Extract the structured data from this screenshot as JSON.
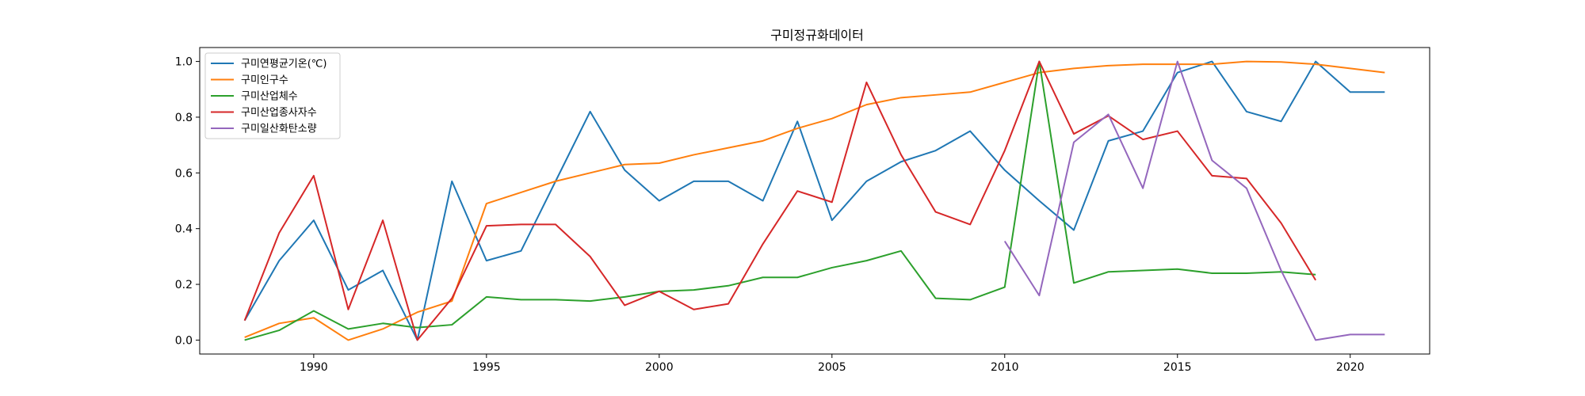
{
  "chart_data": {
    "type": "line",
    "title": "구미정규화데이터",
    "xlabel": "",
    "ylabel": "",
    "xlim": [
      1986.7,
      2022.3
    ],
    "ylim": [
      -0.05,
      1.05
    ],
    "xticks": [
      1990,
      1995,
      2000,
      2005,
      2010,
      2015,
      2020
    ],
    "yticks": [
      "0.0",
      "0.2",
      "0.4",
      "0.6",
      "0.8",
      "1.0"
    ],
    "grid": false,
    "legend_position": "top-left",
    "series": [
      {
        "name": "구미연평균기온(℃)",
        "color": "#1f77b4",
        "points": [
          [
            1988,
            0.07
          ],
          [
            1989,
            0.285
          ],
          [
            1990,
            0.43
          ],
          [
            1991,
            0.18
          ],
          [
            1992,
            0.25
          ],
          [
            1993,
            0.0
          ],
          [
            1994,
            0.57
          ],
          [
            1995,
            0.285
          ],
          [
            1996,
            0.32
          ],
          [
            1997,
            0.57
          ],
          [
            1998,
            0.82
          ],
          [
            1999,
            0.61
          ],
          [
            2000,
            0.5
          ],
          [
            2001,
            0.57
          ],
          [
            2002,
            0.57
          ],
          [
            2003,
            0.5
          ],
          [
            2004,
            0.785
          ],
          [
            2005,
            0.43
          ],
          [
            2006,
            0.57
          ],
          [
            2007,
            0.64
          ],
          [
            2008,
            0.68
          ],
          [
            2009,
            0.75
          ],
          [
            2010,
            0.61
          ],
          [
            2011,
            0.5
          ],
          [
            2012,
            0.395
          ],
          [
            2013,
            0.715
          ],
          [
            2014,
            0.75
          ],
          [
            2015,
            0.96
          ],
          [
            2016,
            1.0
          ],
          [
            2017,
            0.82
          ],
          [
            2018,
            0.785
          ],
          [
            2019,
            1.0
          ],
          [
            2020,
            0.89
          ],
          [
            2021,
            0.89
          ]
        ]
      },
      {
        "name": "구미인구수",
        "color": "#ff7f0e",
        "points": [
          [
            1988,
            0.01
          ],
          [
            1989,
            0.06
          ],
          [
            1990,
            0.08
          ],
          [
            1991,
            0.0
          ],
          [
            1992,
            0.04
          ],
          [
            1993,
            0.1
          ],
          [
            1994,
            0.14
          ],
          [
            1995,
            0.49
          ],
          [
            1996,
            0.53
          ],
          [
            1997,
            0.57
          ],
          [
            1998,
            0.6
          ],
          [
            1999,
            0.63
          ],
          [
            2000,
            0.635
          ],
          [
            2001,
            0.665
          ],
          [
            2002,
            0.69
          ],
          [
            2003,
            0.715
          ],
          [
            2004,
            0.76
          ],
          [
            2005,
            0.795
          ],
          [
            2006,
            0.845
          ],
          [
            2007,
            0.87
          ],
          [
            2008,
            0.88
          ],
          [
            2009,
            0.89
          ],
          [
            2010,
            0.925
          ],
          [
            2011,
            0.96
          ],
          [
            2012,
            0.975
          ],
          [
            2013,
            0.985
          ],
          [
            2014,
            0.99
          ],
          [
            2015,
            0.99
          ],
          [
            2016,
            0.99
          ],
          [
            2017,
            1.0
          ],
          [
            2018,
            0.998
          ],
          [
            2019,
            0.99
          ],
          [
            2020,
            0.975
          ],
          [
            2021,
            0.96
          ]
        ]
      },
      {
        "name": "구미산업체수",
        "color": "#2ca02c",
        "points": [
          [
            1988,
            0.0
          ],
          [
            1989,
            0.035
          ],
          [
            1990,
            0.105
          ],
          [
            1991,
            0.04
          ],
          [
            1992,
            0.06
          ],
          [
            1993,
            0.045
          ],
          [
            1994,
            0.055
          ],
          [
            1995,
            0.155
          ],
          [
            1996,
            0.145
          ],
          [
            1997,
            0.145
          ],
          [
            1998,
            0.14
          ],
          [
            1999,
            0.155
          ],
          [
            2000,
            0.175
          ],
          [
            2001,
            0.18
          ],
          [
            2002,
            0.195
          ],
          [
            2003,
            0.225
          ],
          [
            2004,
            0.225
          ],
          [
            2005,
            0.26
          ],
          [
            2006,
            0.285
          ],
          [
            2007,
            0.32
          ],
          [
            2008,
            0.15
          ],
          [
            2009,
            0.145
          ],
          [
            2010,
            0.19
          ],
          [
            2011,
            1.0
          ],
          [
            2012,
            0.205
          ],
          [
            2013,
            0.245
          ],
          [
            2014,
            0.25
          ],
          [
            2015,
            0.255
          ],
          [
            2016,
            0.24
          ],
          [
            2017,
            0.24
          ],
          [
            2018,
            0.245
          ],
          [
            2019,
            0.235
          ]
        ]
      },
      {
        "name": "구미산업종사자수",
        "color": "#d62728",
        "points": [
          [
            1988,
            0.07
          ],
          [
            1989,
            0.385
          ],
          [
            1990,
            0.59
          ],
          [
            1991,
            0.11
          ],
          [
            1992,
            0.43
          ],
          [
            1993,
            0.0
          ],
          [
            1994,
            0.15
          ],
          [
            1995,
            0.41
          ],
          [
            1996,
            0.415
          ],
          [
            1997,
            0.415
          ],
          [
            1998,
            0.3
          ],
          [
            1999,
            0.125
          ],
          [
            2000,
            0.175
          ],
          [
            2001,
            0.11
          ],
          [
            2002,
            0.13
          ],
          [
            2003,
            0.345
          ],
          [
            2004,
            0.535
          ],
          [
            2005,
            0.495
          ],
          [
            2006,
            0.925
          ],
          [
            2007,
            0.665
          ],
          [
            2008,
            0.46
          ],
          [
            2009,
            0.415
          ],
          [
            2010,
            0.68
          ],
          [
            2011,
            1.0
          ],
          [
            2012,
            0.74
          ],
          [
            2013,
            0.805
          ],
          [
            2014,
            0.72
          ],
          [
            2015,
            0.75
          ],
          [
            2016,
            0.59
          ],
          [
            2017,
            0.58
          ],
          [
            2018,
            0.42
          ],
          [
            2019,
            0.215
          ]
        ]
      },
      {
        "name": "구미일산화탄소량",
        "color": "#9467bd",
        "points": [
          [
            2010,
            0.355
          ],
          [
            2011,
            0.16
          ],
          [
            2012,
            0.71
          ],
          [
            2013,
            0.81
          ],
          [
            2014,
            0.545
          ],
          [
            2015,
            1.0
          ],
          [
            2016,
            0.645
          ],
          [
            2017,
            0.545
          ],
          [
            2018,
            0.25
          ],
          [
            2019,
            0.0
          ],
          [
            2020,
            0.02
          ],
          [
            2021,
            0.02
          ]
        ]
      }
    ]
  }
}
